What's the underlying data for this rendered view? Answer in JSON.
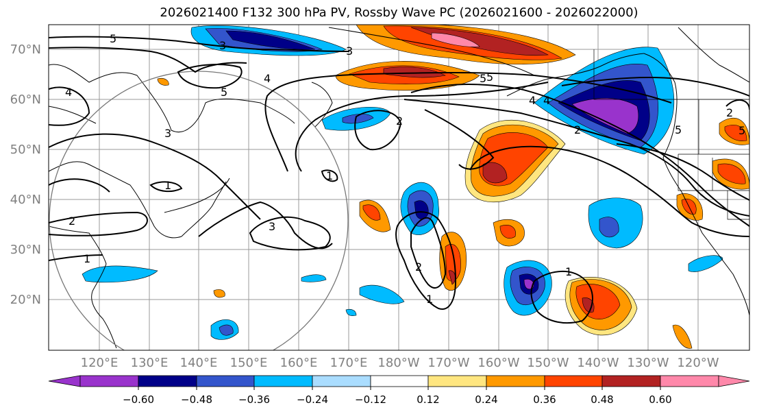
{
  "title": "2026021400 F132 300 hPa PV, Rossby Wave PC (2026021600 - 2026022000)",
  "map": {
    "lat_labels": [
      "70°N",
      "60°N",
      "50°N",
      "40°N",
      "30°N",
      "20°N"
    ],
    "lon_labels": [
      "120°E",
      "130°E",
      "140°E",
      "150°E",
      "160°E",
      "170°E",
      "180°W",
      "170°W",
      "160°W",
      "150°W",
      "140°W",
      "130°W",
      "120°W"
    ],
    "contour_labels": [
      "3",
      "5",
      "4",
      "5",
      "4",
      "3",
      "4",
      "5",
      "2",
      "5",
      "1",
      "2",
      "1",
      "3",
      "1",
      "2",
      "1",
      "2",
      "1",
      "2",
      "3",
      "4",
      "5",
      "5"
    ]
  },
  "colorbar": {
    "tick_labels": [
      "−0.60",
      "−0.48",
      "−0.36",
      "−0.24",
      "−0.12",
      "0.12",
      "0.24",
      "0.36",
      "0.48",
      "0.60"
    ],
    "colors": [
      "#9933cc",
      "#000088",
      "#3355cc",
      "#00bbff",
      "#aaddff",
      "#ffffff",
      "#ffe680",
      "#ff9900",
      "#ff4400",
      "#b22222",
      "#ff88aa"
    ]
  }
}
